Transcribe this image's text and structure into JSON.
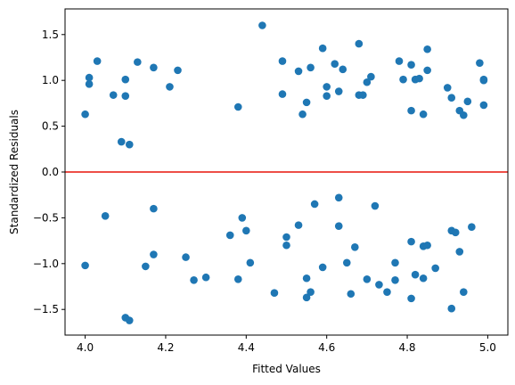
{
  "chart_data": {
    "type": "scatter",
    "title": "",
    "xlabel": "Fitted Values",
    "ylabel": "Standardized Residuals",
    "xlim": [
      3.95,
      5.05
    ],
    "ylim": [
      -1.78,
      1.78
    ],
    "x_ticks": [
      4.0,
      4.2,
      4.4,
      4.6,
      4.8,
      5.0
    ],
    "x_tick_labels": [
      "4.0",
      "4.2",
      "4.4",
      "4.6",
      "4.8",
      "5.0"
    ],
    "y_ticks": [
      -1.5,
      -1.0,
      -0.5,
      0.0,
      0.5,
      1.0,
      1.5
    ],
    "y_tick_labels": [
      "−1.5",
      "−1.0",
      "−0.5",
      "0.0",
      "0.5",
      "1.0",
      "1.5"
    ],
    "grid": false,
    "reference_line": {
      "y": 0.0,
      "color": "#e8140a"
    },
    "point_color": "#1f77b4",
    "points": [
      [
        4.0,
        0.63
      ],
      [
        4.01,
        0.96
      ],
      [
        4.01,
        1.03
      ],
      [
        4.03,
        1.21
      ],
      [
        4.07,
        0.84
      ],
      [
        4.09,
        0.33
      ],
      [
        4.1,
        1.01
      ],
      [
        4.1,
        0.83
      ],
      [
        4.11,
        0.3
      ],
      [
        4.13,
        1.2
      ],
      [
        4.17,
        1.14
      ],
      [
        4.21,
        0.93
      ],
      [
        4.23,
        1.11
      ],
      [
        4.38,
        0.71
      ],
      [
        4.44,
        1.6
      ],
      [
        4.49,
        1.21
      ],
      [
        4.49,
        0.85
      ],
      [
        4.53,
        1.1
      ],
      [
        4.54,
        0.63
      ],
      [
        4.55,
        0.76
      ],
      [
        4.56,
        1.14
      ],
      [
        4.59,
        1.35
      ],
      [
        4.6,
        0.93
      ],
      [
        4.6,
        0.83
      ],
      [
        4.62,
        1.18
      ],
      [
        4.63,
        0.88
      ],
      [
        4.64,
        1.12
      ],
      [
        4.68,
        1.4
      ],
      [
        4.68,
        0.84
      ],
      [
        4.69,
        0.84
      ],
      [
        4.7,
        0.98
      ],
      [
        4.71,
        1.04
      ],
      [
        4.78,
        1.21
      ],
      [
        4.79,
        1.01
      ],
      [
        4.81,
        1.17
      ],
      [
        4.81,
        0.67
      ],
      [
        4.82,
        1.01
      ],
      [
        4.83,
        1.02
      ],
      [
        4.84,
        0.63
      ],
      [
        4.85,
        1.34
      ],
      [
        4.85,
        1.11
      ],
      [
        4.9,
        0.92
      ],
      [
        4.91,
        0.81
      ],
      [
        4.93,
        0.67
      ],
      [
        4.94,
        0.62
      ],
      [
        4.95,
        0.77
      ],
      [
        4.98,
        1.19
      ],
      [
        4.99,
        1.0
      ],
      [
        4.99,
        0.73
      ],
      [
        4.99,
        1.01
      ],
      [
        4.0,
        -1.02
      ],
      [
        4.05,
        -0.48
      ],
      [
        4.1,
        -1.59
      ],
      [
        4.11,
        -1.62
      ],
      [
        4.15,
        -1.03
      ],
      [
        4.17,
        -0.4
      ],
      [
        4.17,
        -0.9
      ],
      [
        4.25,
        -0.93
      ],
      [
        4.27,
        -1.18
      ],
      [
        4.3,
        -1.15
      ],
      [
        4.36,
        -0.69
      ],
      [
        4.38,
        -1.17
      ],
      [
        4.39,
        -0.5
      ],
      [
        4.4,
        -0.64
      ],
      [
        4.41,
        -0.99
      ],
      [
        4.47,
        -1.32
      ],
      [
        4.5,
        -0.71
      ],
      [
        4.5,
        -0.8
      ],
      [
        4.53,
        -0.58
      ],
      [
        4.55,
        -1.16
      ],
      [
        4.55,
        -1.37
      ],
      [
        4.56,
        -1.31
      ],
      [
        4.57,
        -0.35
      ],
      [
        4.59,
        -1.04
      ],
      [
        4.63,
        -0.28
      ],
      [
        4.63,
        -0.59
      ],
      [
        4.65,
        -0.99
      ],
      [
        4.66,
        -1.33
      ],
      [
        4.67,
        -0.82
      ],
      [
        4.7,
        -1.17
      ],
      [
        4.72,
        -0.37
      ],
      [
        4.73,
        -1.23
      ],
      [
        4.75,
        -1.31
      ],
      [
        4.77,
        -0.99
      ],
      [
        4.77,
        -1.18
      ],
      [
        4.81,
        -1.38
      ],
      [
        4.81,
        -0.76
      ],
      [
        4.82,
        -1.12
      ],
      [
        4.84,
        -0.81
      ],
      [
        4.85,
        -0.8
      ],
      [
        4.84,
        -1.16
      ],
      [
        4.87,
        -1.05
      ],
      [
        4.91,
        -1.49
      ],
      [
        4.91,
        -0.64
      ],
      [
        4.92,
        -0.66
      ],
      [
        4.93,
        -0.87
      ],
      [
        4.94,
        -1.31
      ],
      [
        4.96,
        -0.6
      ]
    ]
  }
}
